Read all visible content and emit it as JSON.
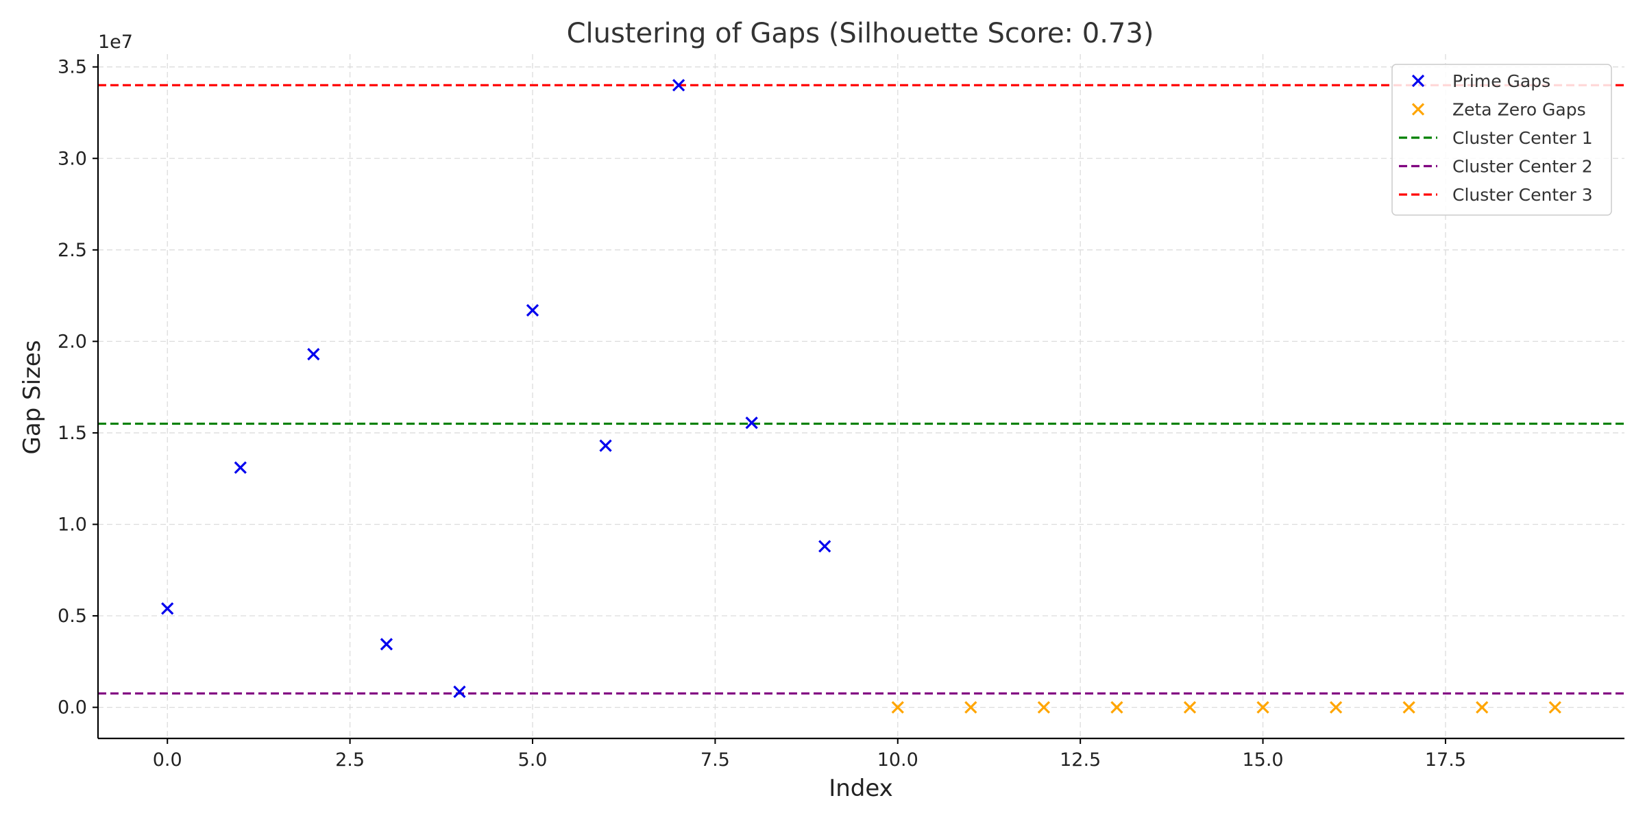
{
  "chart_data": {
    "type": "scatter",
    "title": "Clustering of Gaps (Silhouette Score: 0.73)",
    "xlabel": "Index",
    "ylabel": "Gap Sizes",
    "y_offset_label": "1e7",
    "xlim": [
      -0.95,
      19.95
    ],
    "ylim": [
      -1700000,
      35700000
    ],
    "x_ticks": [
      0.0,
      2.5,
      5.0,
      7.5,
      10.0,
      12.5,
      15.0,
      17.5
    ],
    "x_tick_labels": [
      "0.0",
      "2.5",
      "5.0",
      "7.5",
      "10.0",
      "12.5",
      "15.0",
      "17.5"
    ],
    "y_ticks": [
      0,
      5000000,
      10000000,
      15000000,
      20000000,
      25000000,
      30000000,
      35000000
    ],
    "y_tick_labels": [
      "0.0",
      "0.5",
      "1.0",
      "1.5",
      "2.0",
      "2.5",
      "3.0",
      "3.5"
    ],
    "grid": true,
    "legend_position": "top-right",
    "series": [
      {
        "name": "Prime Gaps",
        "kind": "scatter",
        "marker": "x",
        "color": "#0000ee",
        "x": [
          0,
          1,
          2,
          3,
          4,
          5,
          6,
          7,
          8,
          9
        ],
        "y": [
          5400000,
          13100000,
          19300000,
          3450000,
          850000,
          21700000,
          14300000,
          34000000,
          15550000,
          8800000
        ]
      },
      {
        "name": "Zeta Zero Gaps",
        "kind": "scatter",
        "marker": "x",
        "color": "#ffa500",
        "x": [
          10,
          11,
          12,
          13,
          14,
          15,
          16,
          17,
          18,
          19
        ],
        "y": [
          0,
          0,
          0,
          0,
          0,
          0,
          0,
          0,
          0,
          0
        ]
      },
      {
        "name": "Cluster Center 1",
        "kind": "hline",
        "color": "#008000",
        "y": 15500000
      },
      {
        "name": "Cluster Center 2",
        "kind": "hline",
        "color": "#800080",
        "y": 760000
      },
      {
        "name": "Cluster Center 3",
        "kind": "hline",
        "color": "#ff0000",
        "y": 34000000
      }
    ]
  }
}
